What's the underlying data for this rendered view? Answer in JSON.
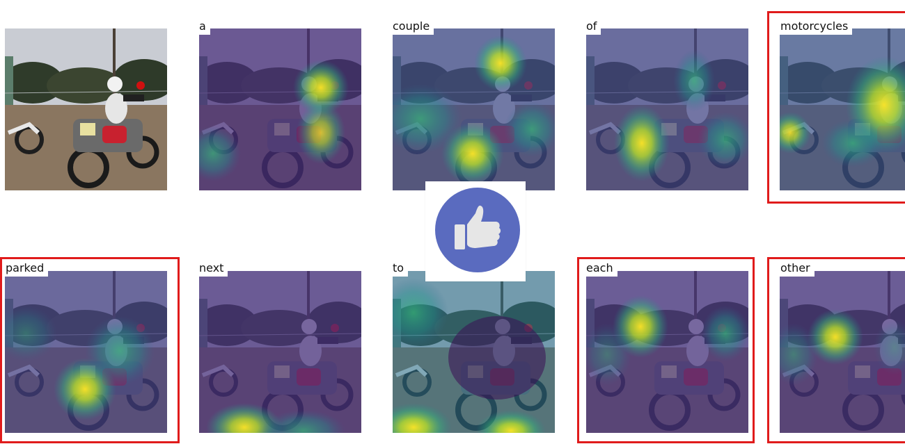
{
  "figure": {
    "words": [
      "a",
      "couple",
      "of",
      "motorcycles",
      "parked",
      "next",
      "to",
      "each",
      "other"
    ],
    "highlighted_words": [
      "motorcycles",
      "parked",
      "each",
      "other"
    ],
    "colormap": "viridis",
    "highlight_color": "#e01b1b",
    "overlay_icon": "thumbs-up-icon",
    "overlay_icon_color": "#5a6bbf"
  }
}
